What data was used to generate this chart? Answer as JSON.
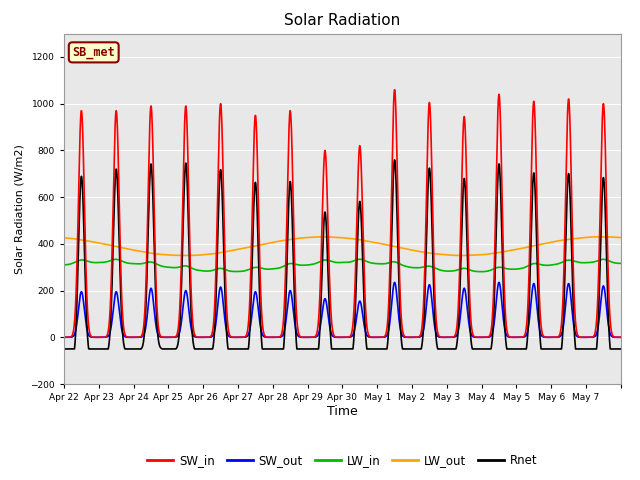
{
  "title": "Solar Radiation",
  "xlabel": "Time",
  "ylabel": "Solar Radiation (W/m2)",
  "ylim": [
    -200,
    1300
  ],
  "yticks": [
    -200,
    0,
    200,
    400,
    600,
    800,
    1000,
    1200
  ],
  "background_color": "#e8e8e8",
  "figure_color": "#ffffff",
  "legend_label": "SB_met",
  "legend_label_color": "#8b0000",
  "legend_label_bg": "#ffffcc",
  "line_colors": {
    "SW_in": "#ff0000",
    "SW_out": "#0000ff",
    "LW_in": "#00bb00",
    "LW_out": "#ffa500",
    "Rnet": "#000000"
  },
  "line_widths": {
    "SW_in": 1.2,
    "SW_out": 1.2,
    "LW_in": 1.2,
    "LW_out": 1.2,
    "Rnet": 1.2
  },
  "date_labels": [
    "Apr 22",
    "Apr 23",
    "Apr 24",
    "Apr 25",
    "Apr 26",
    "Apr 27",
    "Apr 28",
    "Apr 29",
    "Apr 30",
    "May 1",
    "May 2",
    "May 3",
    "May 4",
    "May 5",
    "May 6",
    "May 7"
  ],
  "SW_in_peaks": [
    970,
    970,
    990,
    990,
    1000,
    950,
    970,
    800,
    820,
    1060,
    1005,
    945,
    1040,
    1010,
    1020,
    1000
  ],
  "SW_out_peaks": [
    195,
    195,
    210,
    200,
    215,
    195,
    200,
    165,
    155,
    235,
    225,
    210,
    235,
    230,
    230,
    220
  ],
  "LW_in_base": 300,
  "LW_out_base": 390,
  "n_days": 16
}
